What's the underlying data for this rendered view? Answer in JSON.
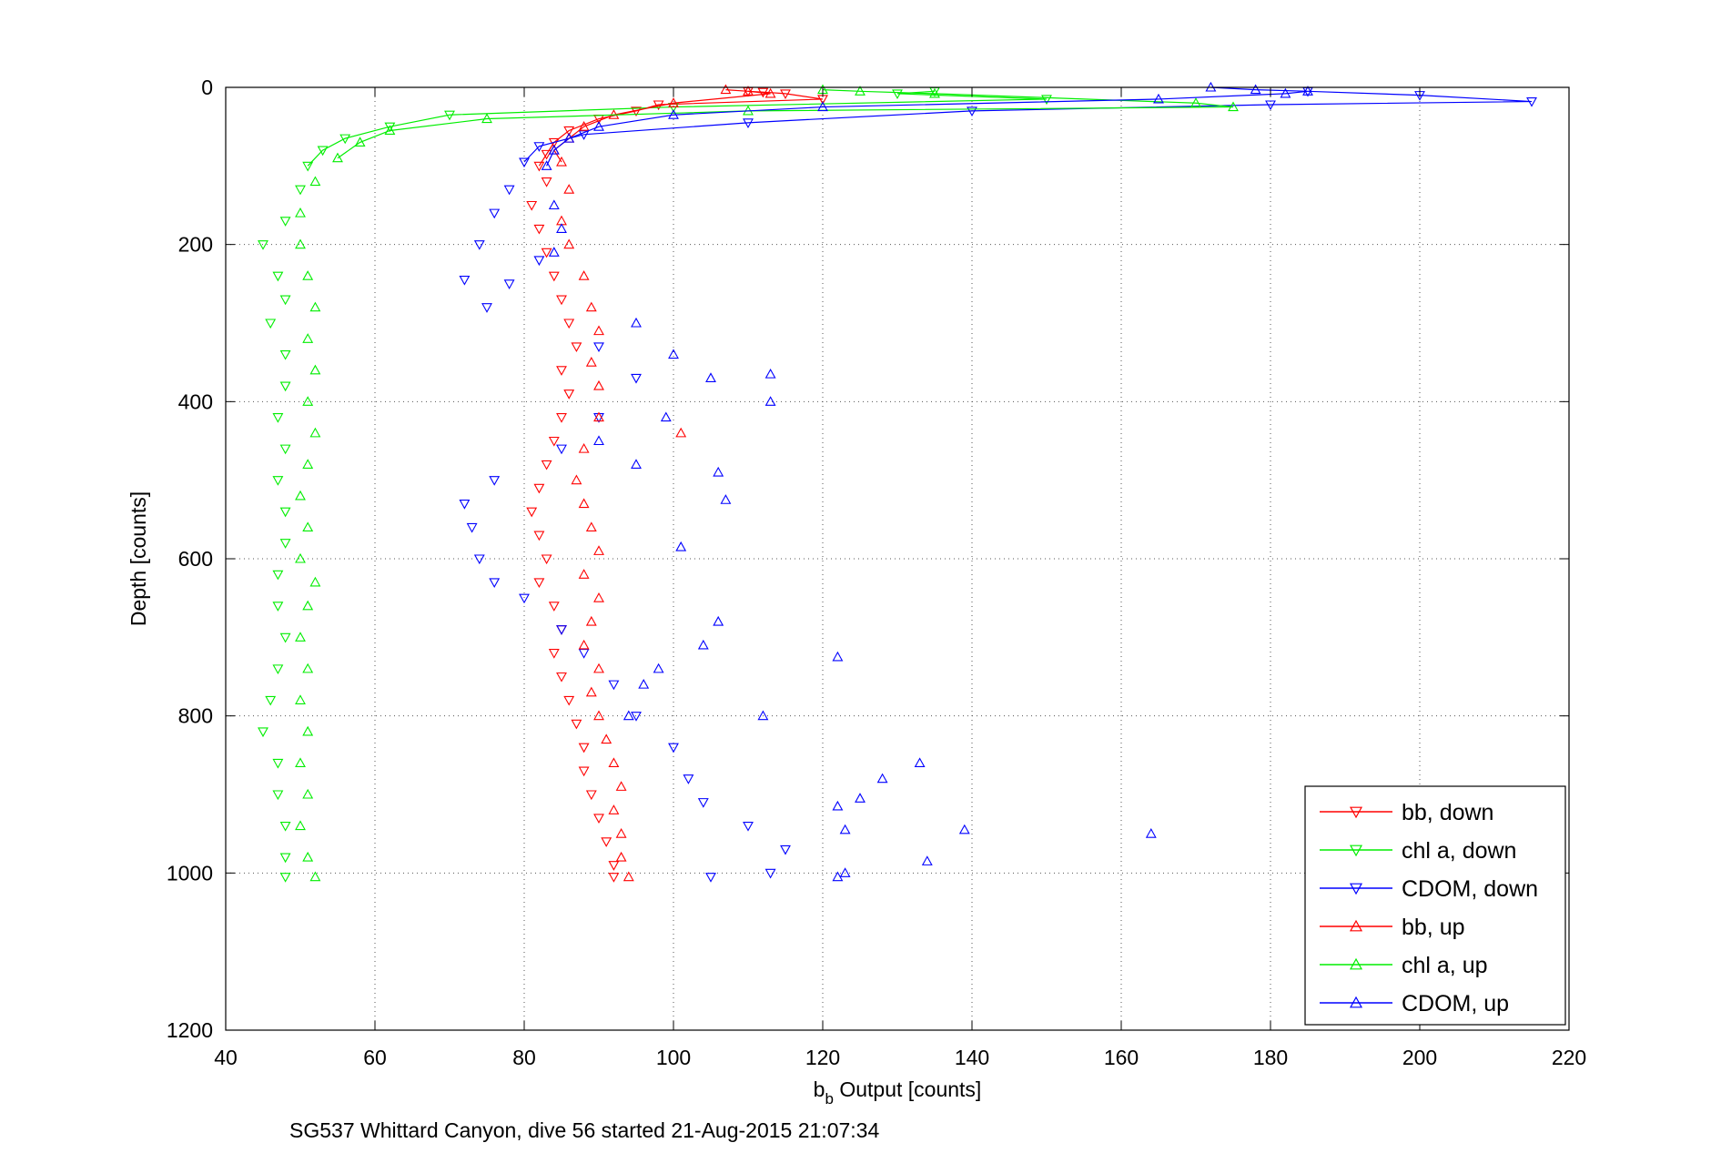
{
  "chart_data": {
    "type": "scatter",
    "xlabel_main": "b",
    "xlabel_sub": "b",
    "xlabel_rest": " Output [counts]",
    "ylabel": "Depth [counts]",
    "caption": "SG537 Whittard Canyon, dive 56 started 21-Aug-2015 21:07:34",
    "xlim": [
      40,
      220
    ],
    "ylim": [
      0,
      1200
    ],
    "y_reversed": true,
    "grid": true,
    "legend_position": "bottom-right",
    "xticks": [
      "40",
      "60",
      "80",
      "100",
      "120",
      "140",
      "160",
      "180",
      "200",
      "220"
    ],
    "yticks": [
      "0",
      "200",
      "400",
      "600",
      "800",
      "1000",
      "1200"
    ],
    "series": [
      {
        "name": "bb, down",
        "color": "#ff0000",
        "marker": "triangle-down",
        "points": [
          [
            110,
            5
          ],
          [
            112,
            6
          ],
          [
            115,
            8
          ],
          [
            120,
            15
          ],
          [
            98,
            22
          ],
          [
            95,
            30
          ],
          [
            90,
            40
          ],
          [
            86,
            55
          ],
          [
            84,
            70
          ],
          [
            83,
            85
          ],
          [
            82,
            100
          ],
          [
            83,
            120
          ],
          [
            81,
            150
          ],
          [
            82,
            180
          ],
          [
            83,
            210
          ],
          [
            84,
            240
          ],
          [
            85,
            270
          ],
          [
            86,
            300
          ],
          [
            87,
            330
          ],
          [
            85,
            360
          ],
          [
            86,
            390
          ],
          [
            85,
            420
          ],
          [
            84,
            450
          ],
          [
            83,
            480
          ],
          [
            82,
            510
          ],
          [
            81,
            540
          ],
          [
            82,
            570
          ],
          [
            83,
            600
          ],
          [
            82,
            630
          ],
          [
            84,
            660
          ],
          [
            85,
            690
          ],
          [
            84,
            720
          ],
          [
            85,
            750
          ],
          [
            86,
            780
          ],
          [
            87,
            810
          ],
          [
            88,
            840
          ],
          [
            88,
            870
          ],
          [
            89,
            900
          ],
          [
            90,
            930
          ],
          [
            91,
            960
          ],
          [
            92,
            990
          ],
          [
            92,
            1005
          ]
        ]
      },
      {
        "name": "chl a, down",
        "color": "#00ee00",
        "marker": "triangle-down",
        "points": [
          [
            135,
            5
          ],
          [
            130,
            8
          ],
          [
            150,
            15
          ],
          [
            100,
            25
          ],
          [
            70,
            35
          ],
          [
            62,
            50
          ],
          [
            56,
            65
          ],
          [
            53,
            80
          ],
          [
            51,
            100
          ],
          [
            50,
            130
          ],
          [
            48,
            170
          ],
          [
            45,
            200
          ],
          [
            47,
            240
          ],
          [
            48,
            270
          ],
          [
            46,
            300
          ],
          [
            48,
            340
          ],
          [
            48,
            380
          ],
          [
            47,
            420
          ],
          [
            48,
            460
          ],
          [
            47,
            500
          ],
          [
            48,
            540
          ],
          [
            48,
            580
          ],
          [
            47,
            620
          ],
          [
            47,
            660
          ],
          [
            48,
            700
          ],
          [
            47,
            740
          ],
          [
            46,
            780
          ],
          [
            45,
            820
          ],
          [
            47,
            860
          ],
          [
            47,
            900
          ],
          [
            48,
            940
          ],
          [
            48,
            980
          ],
          [
            48,
            1005
          ]
        ]
      },
      {
        "name": "CDOM, down",
        "color": "#0000ff",
        "marker": "triangle-down",
        "points": [
          [
            185,
            5
          ],
          [
            200,
            10
          ],
          [
            215,
            18
          ],
          [
            180,
            22
          ],
          [
            140,
            30
          ],
          [
            110,
            45
          ],
          [
            88,
            60
          ],
          [
            82,
            75
          ],
          [
            80,
            95
          ],
          [
            78,
            130
          ],
          [
            76,
            160
          ],
          [
            74,
            200
          ],
          [
            72,
            245
          ],
          [
            75,
            280
          ],
          [
            78,
            250
          ],
          [
            82,
            220
          ],
          [
            90,
            330
          ],
          [
            95,
            370
          ],
          [
            90,
            420
          ],
          [
            85,
            460
          ],
          [
            76,
            500
          ],
          [
            72,
            530
          ],
          [
            73,
            560
          ],
          [
            74,
            600
          ],
          [
            76,
            630
          ],
          [
            80,
            650
          ],
          [
            85,
            690
          ],
          [
            88,
            720
          ],
          [
            92,
            760
          ],
          [
            95,
            800
          ],
          [
            100,
            840
          ],
          [
            102,
            880
          ],
          [
            104,
            910
          ],
          [
            110,
            940
          ],
          [
            115,
            970
          ],
          [
            113,
            1000
          ],
          [
            105,
            1005
          ]
        ]
      },
      {
        "name": "bb, up",
        "color": "#ff0000",
        "marker": "triangle-up",
        "points": [
          [
            107,
            3
          ],
          [
            110,
            5
          ],
          [
            113,
            8
          ],
          [
            100,
            20
          ],
          [
            92,
            35
          ],
          [
            88,
            50
          ],
          [
            86,
            65
          ],
          [
            84,
            80
          ],
          [
            85,
            95
          ],
          [
            86,
            130
          ],
          [
            85,
            170
          ],
          [
            86,
            200
          ],
          [
            88,
            240
          ],
          [
            89,
            280
          ],
          [
            90,
            310
          ],
          [
            89,
            350
          ],
          [
            90,
            380
          ],
          [
            101,
            440
          ],
          [
            90,
            420
          ],
          [
            88,
            460
          ],
          [
            87,
            500
          ],
          [
            88,
            530
          ],
          [
            89,
            560
          ],
          [
            90,
            590
          ],
          [
            88,
            620
          ],
          [
            90,
            650
          ],
          [
            89,
            680
          ],
          [
            88,
            710
          ],
          [
            90,
            740
          ],
          [
            89,
            770
          ],
          [
            90,
            800
          ],
          [
            91,
            830
          ],
          [
            92,
            860
          ],
          [
            93,
            890
          ],
          [
            92,
            920
          ],
          [
            93,
            950
          ],
          [
            93,
            980
          ],
          [
            94,
            1005
          ]
        ]
      },
      {
        "name": "chl a, up",
        "color": "#00ee00",
        "marker": "triangle-up",
        "points": [
          [
            120,
            3
          ],
          [
            125,
            5
          ],
          [
            135,
            8
          ],
          [
            170,
            20
          ],
          [
            175,
            25
          ],
          [
            110,
            30
          ],
          [
            75,
            40
          ],
          [
            62,
            55
          ],
          [
            58,
            70
          ],
          [
            55,
            90
          ],
          [
            52,
            120
          ],
          [
            50,
            160
          ],
          [
            50,
            200
          ],
          [
            51,
            240
          ],
          [
            52,
            280
          ],
          [
            51,
            320
          ],
          [
            52,
            360
          ],
          [
            51,
            400
          ],
          [
            52,
            440
          ],
          [
            51,
            480
          ],
          [
            50,
            520
          ],
          [
            51,
            560
          ],
          [
            50,
            600
          ],
          [
            52,
            630
          ],
          [
            51,
            660
          ],
          [
            50,
            700
          ],
          [
            51,
            740
          ],
          [
            50,
            780
          ],
          [
            51,
            820
          ],
          [
            50,
            860
          ],
          [
            51,
            900
          ],
          [
            50,
            940
          ],
          [
            51,
            980
          ],
          [
            52,
            1005
          ]
        ]
      },
      {
        "name": "CDOM, up",
        "color": "#0000ff",
        "marker": "triangle-up",
        "points": [
          [
            172,
            0
          ],
          [
            178,
            3
          ],
          [
            185,
            5
          ],
          [
            182,
            8
          ],
          [
            165,
            15
          ],
          [
            120,
            25
          ],
          [
            100,
            35
          ],
          [
            90,
            50
          ],
          [
            86,
            65
          ],
          [
            84,
            80
          ],
          [
            83,
            100
          ],
          [
            84,
            150
          ],
          [
            85,
            180
          ],
          [
            84,
            210
          ],
          [
            95,
            300
          ],
          [
            100,
            340
          ],
          [
            105,
            370
          ],
          [
            113,
            365
          ],
          [
            113,
            400
          ],
          [
            99,
            420
          ],
          [
            90,
            450
          ],
          [
            95,
            480
          ],
          [
            106,
            490
          ],
          [
            107,
            525
          ],
          [
            101,
            585
          ],
          [
            106,
            680
          ],
          [
            104,
            710
          ],
          [
            98,
            740
          ],
          [
            122,
            725
          ],
          [
            96,
            760
          ],
          [
            94,
            800
          ],
          [
            112,
            800
          ],
          [
            133,
            860
          ],
          [
            128,
            880
          ],
          [
            125,
            905
          ],
          [
            122,
            915
          ],
          [
            123,
            945
          ],
          [
            139,
            945
          ],
          [
            164,
            950
          ],
          [
            134,
            985
          ],
          [
            123,
            1000
          ],
          [
            122,
            1005
          ]
        ]
      }
    ]
  }
}
